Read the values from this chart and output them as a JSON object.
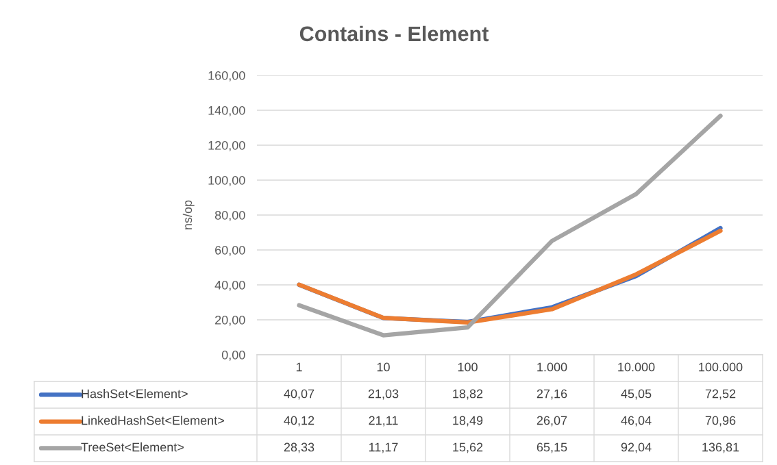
{
  "chart_data": {
    "type": "line",
    "title": "Contains - Element",
    "ylabel": "ns/op",
    "categories": [
      "1",
      "10",
      "100",
      "1.000",
      "10.000",
      "100.000"
    ],
    "series": [
      {
        "name": "HashSet<Element>",
        "color": "#4472c4",
        "values": [
          40.07,
          21.03,
          18.82,
          27.16,
          45.05,
          72.52
        ],
        "value_labels": [
          "40,07",
          "21,03",
          "18,82",
          "27,16",
          "45,05",
          "72,52"
        ]
      },
      {
        "name": "LinkedHashSet<Element>",
        "color": "#ed7d31",
        "values": [
          40.12,
          21.11,
          18.49,
          26.07,
          46.04,
          70.96
        ],
        "value_labels": [
          "40,12",
          "21,11",
          "18,49",
          "26,07",
          "46,04",
          "70,96"
        ]
      },
      {
        "name": "TreeSet<Element>",
        "color": "#a5a5a5",
        "values": [
          28.33,
          11.17,
          15.62,
          65.15,
          92.04,
          136.81
        ],
        "value_labels": [
          "28,33",
          "11,17",
          "15,62",
          "65,15",
          "92,04",
          "136,81"
        ]
      }
    ],
    "ylim": [
      0,
      160
    ],
    "yticks": [
      {
        "value": 0,
        "label": "0,00"
      },
      {
        "value": 20,
        "label": "20,00"
      },
      {
        "value": 40,
        "label": "40,00"
      },
      {
        "value": 60,
        "label": "60,00"
      },
      {
        "value": 80,
        "label": "80,00"
      },
      {
        "value": 100,
        "label": "100,00"
      },
      {
        "value": 120,
        "label": "120,00"
      },
      {
        "value": 140,
        "label": "140,00"
      },
      {
        "value": 160,
        "label": "160,00"
      }
    ],
    "grid": "y",
    "legend": "bottom",
    "marker": "none",
    "line_style": "solid"
  }
}
